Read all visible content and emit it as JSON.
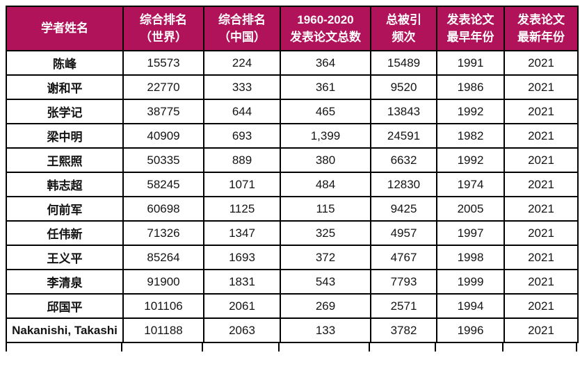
{
  "colors": {
    "header_bg": "#B1135A",
    "header_text": "#FFFFFF",
    "border": "#000000",
    "grid_line": "#C9C9C9",
    "cell_text": "#141414"
  },
  "table": {
    "columns": [
      {
        "label": "学者姓名"
      },
      {
        "label": "综合排名\n（世界）"
      },
      {
        "label": "综合排名\n（中国）"
      },
      {
        "label": "1960-2020\n发表论文总数"
      },
      {
        "label": "总被引\n频次"
      },
      {
        "label": "发表论文\n最早年份"
      },
      {
        "label": "发表论文\n最新年份"
      }
    ],
    "rows": [
      [
        "陈峰",
        "15573",
        "224",
        "364",
        "15489",
        "1991",
        "2021"
      ],
      [
        "谢和平",
        "22770",
        "333",
        "361",
        "9520",
        "1986",
        "2021"
      ],
      [
        "张学记",
        "38775",
        "644",
        "465",
        "13843",
        "1992",
        "2021"
      ],
      [
        "梁中明",
        "40909",
        "693",
        "1,399",
        "24591",
        "1982",
        "2021"
      ],
      [
        "王熙照",
        "50335",
        "889",
        "380",
        "6632",
        "1992",
        "2021"
      ],
      [
        "韩志超",
        "58245",
        "1071",
        "484",
        "12830",
        "1974",
        "2021"
      ],
      [
        "何前军",
        "60698",
        "1125",
        "115",
        "9425",
        "2005",
        "2021"
      ],
      [
        "任伟新",
        "71326",
        "1347",
        "325",
        "4957",
        "1997",
        "2021"
      ],
      [
        "王义平",
        "85264",
        "1693",
        "372",
        "4767",
        "1998",
        "2021"
      ],
      [
        "李清泉",
        "91900",
        "1831",
        "543",
        "7793",
        "1999",
        "2021"
      ],
      [
        "邱国平",
        "101106",
        "2061",
        "269",
        "2571",
        "1994",
        "2021"
      ],
      [
        "Nakanishi, Takashi",
        "101188",
        "2063",
        "133",
        "3782",
        "1996",
        "2021"
      ]
    ]
  }
}
